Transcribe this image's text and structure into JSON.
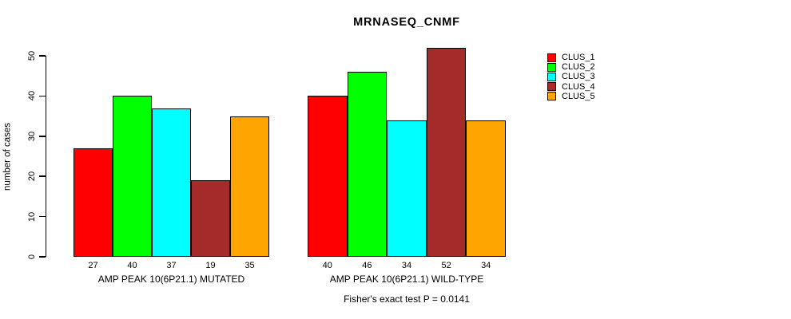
{
  "chart_data": {
    "type": "bar",
    "title": "MRNASEQ_CNMF",
    "ylabel": "number of cases",
    "xlabel": "",
    "ylim": [
      0,
      52
    ],
    "yticks": [
      0,
      10,
      20,
      30,
      40,
      50
    ],
    "grid": false,
    "legend_position": "right",
    "bar_value_labels_shown": true,
    "categories": [
      "AMP PEAK 10(6P21.1) MUTATED",
      "AMP PEAK 10(6P21.1) WILD-TYPE"
    ],
    "series": [
      {
        "name": "CLUS_1",
        "color": "#FF0000",
        "values": [
          27,
          40
        ]
      },
      {
        "name": "CLUS_2",
        "color": "#00FF00",
        "values": [
          40,
          46
        ]
      },
      {
        "name": "CLUS_3",
        "color": "#00FFFF",
        "values": [
          37,
          34
        ]
      },
      {
        "name": "CLUS_4",
        "color": "#A52A2A",
        "values": [
          19,
          52
        ]
      },
      {
        "name": "CLUS_5",
        "color": "#FFA500",
        "values": [
          35,
          34
        ]
      }
    ],
    "annotation": "Fisher's exact test P = 0.0141"
  }
}
